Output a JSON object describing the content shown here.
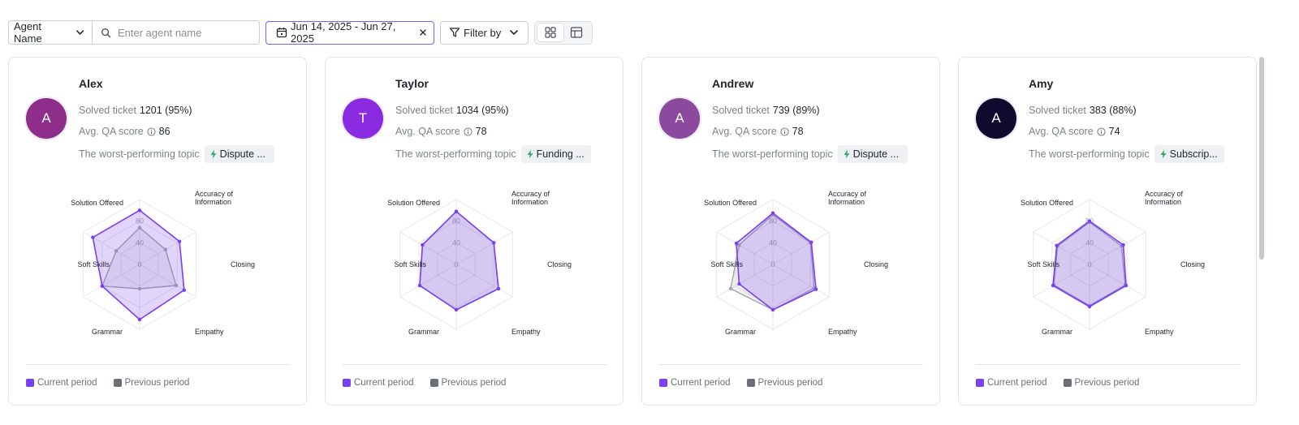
{
  "toolbar": {
    "field_select": "Agent Name",
    "search_placeholder": "Enter agent name",
    "date_range": "Jun 14, 2025 - Jun 27, 2025",
    "filter_label": "Filter by"
  },
  "labels": {
    "solved": "Solved ticket",
    "qa": "Avg. QA score",
    "topic": "The worst-performing topic",
    "legend_current": "Current period",
    "legend_previous": "Previous period"
  },
  "colors": {
    "current": "#7b3ff2",
    "previous": "#6b6f78"
  },
  "agents": [
    {
      "initial": "A",
      "name": "Alex",
      "avatar_color": "#8e2e8a",
      "solved": "1201 (95%)",
      "qa": "86",
      "topic": "Dispute ..."
    },
    {
      "initial": "T",
      "name": "Taylor",
      "avatar_color": "#8a2be2",
      "solved": "1034 (95%)",
      "qa": "78",
      "topic": "Funding ..."
    },
    {
      "initial": "A",
      "name": "Andrew",
      "avatar_color": "#8b4a9e",
      "solved": "739 (89%)",
      "qa": "78",
      "topic": "Dispute ..."
    },
    {
      "initial": "A",
      "name": "Amy",
      "avatar_color": "#0f0a2e",
      "solved": "383 (88%)",
      "qa": "74",
      "topic": "Subscrip..."
    }
  ],
  "chart_data": [
    {
      "type": "radar",
      "axes": [
        "Accuracy of Information",
        "Closing",
        "Empathy",
        "Grammar",
        "Soft Skills",
        "Solution Offered"
      ],
      "ticks": [
        "0",
        "40",
        "80"
      ],
      "rmax": 120,
      "series": [
        {
          "name": "Current period",
          "values": [
            85,
            95,
            102,
            80,
            100,
            100
          ]
        },
        {
          "name": "Previous period",
          "values": [
            55,
            78,
            45,
            80,
            50,
            68
          ]
        }
      ]
    },
    {
      "type": "radar",
      "axes": [
        "Accuracy of Information",
        "Closing",
        "Empathy",
        "Grammar",
        "Soft Skills",
        "Solution Offered"
      ],
      "ticks": [
        "0",
        "40",
        "80"
      ],
      "rmax": 120,
      "series": [
        {
          "name": "Current period",
          "values": [
            80,
            90,
            84,
            78,
            72,
            98
          ]
        },
        {
          "name": "Previous period",
          "values": [
            80,
            90,
            84,
            78,
            72,
            98
          ]
        }
      ]
    },
    {
      "type": "radar",
      "axes": [
        "Accuracy of Information",
        "Closing",
        "Empathy",
        "Grammar",
        "Soft Skills",
        "Solution Offered"
      ],
      "ticks": [
        "0",
        "40",
        "80"
      ],
      "rmax": 120,
      "series": [
        {
          "name": "Current period",
          "values": [
            82,
            92,
            84,
            72,
            78,
            95
          ]
        },
        {
          "name": "Previous period",
          "values": [
            80,
            88,
            84,
            90,
            72,
            92
          ]
        }
      ]
    },
    {
      "type": "radar",
      "axes": [
        "Accuracy of Information",
        "Closing",
        "Empathy",
        "Grammar",
        "Soft Skills",
        "Solution Offered"
      ],
      "ticks": [
        "0",
        "40",
        "80"
      ],
      "rmax": 120,
      "series": [
        {
          "name": "Current period",
          "values": [
            72,
            78,
            78,
            78,
            70,
            80
          ]
        },
        {
          "name": "Previous period",
          "values": [
            68,
            76,
            76,
            76,
            68,
            78
          ]
        }
      ]
    }
  ]
}
